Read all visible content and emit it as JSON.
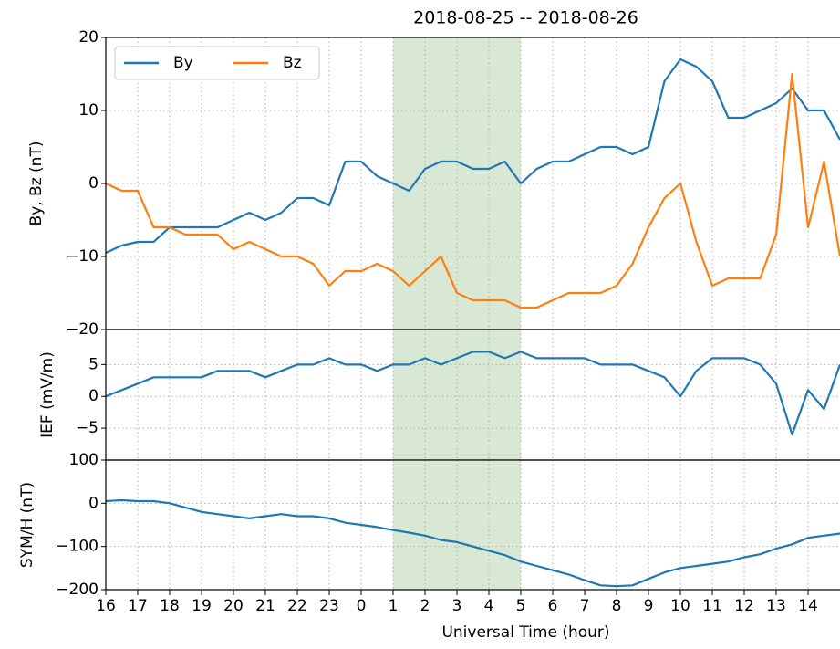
{
  "chart_data": [
    {
      "type": "line",
      "title": "2018-08-25 -- 2018-08-26",
      "ylabel": "By, Bz (nT)",
      "x": [
        0,
        0.5,
        1,
        1.5,
        2,
        2.5,
        3,
        3.5,
        4,
        4.5,
        5,
        5.5,
        6,
        6.5,
        7,
        7.5,
        8,
        8.5,
        9,
        9.5,
        10,
        10.5,
        11,
        11.5,
        12,
        12.5,
        13,
        13.5,
        14,
        14.5,
        15,
        15.5,
        16,
        16.5,
        17,
        17.5,
        18,
        18.5,
        19,
        19.5,
        20,
        20.5,
        21,
        21.5,
        22,
        22.5,
        23
      ],
      "series": [
        {
          "name": "By",
          "color": "#1f77b4",
          "values": [
            -9.5,
            -8.5,
            -8,
            -8,
            -6,
            -6,
            -6,
            -6,
            -5,
            -4,
            -5,
            -4,
            -2,
            -2,
            -3,
            3,
            3,
            1,
            0,
            -1,
            2,
            3,
            3,
            2,
            2,
            3,
            0,
            2,
            3,
            3,
            4,
            5,
            5,
            4,
            5,
            14,
            17,
            16,
            14,
            9,
            9,
            10,
            11,
            13,
            10,
            10,
            6
          ]
        },
        {
          "name": "Bz",
          "color": "#ff7f0e",
          "values": [
            0,
            -1,
            -1,
            -6,
            -6,
            -7,
            -7,
            -7,
            -9,
            -8,
            -9,
            -10,
            -10,
            -11,
            -14,
            -12,
            -12,
            -11,
            -12,
            -14,
            -12,
            -10,
            -15,
            -16,
            -16,
            -16,
            -17,
            -17,
            -16,
            -15,
            -15,
            -15,
            -14,
            -11,
            -6,
            -2,
            0,
            -8,
            -14,
            -13,
            -13,
            -13,
            -7,
            15,
            -6,
            3,
            -10
          ]
        }
      ],
      "xlim": [
        0,
        23
      ],
      "ylim": [
        -20,
        20
      ],
      "yticks": [
        {
          "value": -20,
          "label": "−20"
        },
        {
          "value": -10,
          "label": "−10"
        },
        0,
        10,
        20
      ],
      "grid": true,
      "legend": "upper left",
      "highlight": [
        9,
        13
      ],
      "highlight_color": "#d9e8d4"
    },
    {
      "type": "line",
      "ylabel": "IEF (mV/m)",
      "x": [
        0,
        0.5,
        1,
        1.5,
        2,
        2.5,
        3,
        3.5,
        4,
        4.5,
        5,
        5.5,
        6,
        6.5,
        7,
        7.5,
        8,
        8.5,
        9,
        9.5,
        10,
        10.5,
        11,
        11.5,
        12,
        12.5,
        13,
        13.5,
        14,
        14.5,
        15,
        15.5,
        16,
        16.5,
        17,
        17.5,
        18,
        18.5,
        19,
        19.5,
        20,
        20.5,
        21,
        21.5,
        22,
        22.5,
        23
      ],
      "series": [
        {
          "color": "#1f77b4",
          "values": [
            0,
            1,
            2,
            3,
            3,
            3,
            3,
            4,
            4,
            4,
            3,
            4,
            5,
            5,
            6,
            5,
            5,
            4,
            5,
            5,
            6,
            5,
            6,
            7,
            7,
            6,
            7,
            6,
            6,
            6,
            6,
            5,
            5,
            5,
            4,
            3,
            0,
            4,
            6,
            6,
            6,
            5,
            2,
            -6,
            1,
            -2,
            5
          ]
        }
      ],
      "xlim": [
        0,
        23
      ],
      "ylim": [
        -10,
        10.5
      ],
      "yticks": [
        {
          "value": -5,
          "label": "−5"
        },
        0,
        5
      ],
      "grid": true,
      "highlight": [
        9,
        13
      ],
      "highlight_color": "#d9e8d4"
    },
    {
      "type": "line",
      "ylabel": "SYM/H (nT)",
      "xlabel": "Universal Time (hour)",
      "x": [
        0,
        0.5,
        1,
        1.5,
        2,
        2.5,
        3,
        3.5,
        4,
        4.5,
        5,
        5.5,
        6,
        6.5,
        7,
        7.5,
        8,
        8.5,
        9,
        9.5,
        10,
        10.5,
        11,
        11.5,
        12,
        12.5,
        13,
        13.5,
        14,
        14.5,
        15,
        15.5,
        16,
        16.5,
        17,
        17.5,
        18,
        18.5,
        19,
        19.5,
        20,
        20.5,
        21,
        21.5,
        22,
        22.5,
        23
      ],
      "series": [
        {
          "color": "#1f77b4",
          "values": [
            5,
            7,
            5,
            5,
            0,
            -10,
            -20,
            -25,
            -30,
            -35,
            -30,
            -25,
            -30,
            -30,
            -35,
            -45,
            -50,
            -55,
            -62,
            -68,
            -75,
            -85,
            -90,
            -100,
            -110,
            -120,
            -135,
            -145,
            -155,
            -165,
            -178,
            -190,
            -192,
            -190,
            -175,
            -160,
            -150,
            -145,
            -140,
            -135,
            -125,
            -118,
            -105,
            -95,
            -80,
            -75,
            -70
          ]
        }
      ],
      "xlim": [
        0,
        23
      ],
      "ylim": [
        -200,
        100
      ],
      "yticks": [
        {
          "value": -200,
          "label": "−200"
        },
        {
          "value": -100,
          "label": "−100"
        },
        0,
        100
      ],
      "xticks": [
        {
          "value": 0,
          "label": "16"
        },
        {
          "value": 1,
          "label": "17"
        },
        {
          "value": 2,
          "label": "18"
        },
        {
          "value": 3,
          "label": "19"
        },
        {
          "value": 4,
          "label": "20"
        },
        {
          "value": 5,
          "label": "21"
        },
        {
          "value": 6,
          "label": "22"
        },
        {
          "value": 7,
          "label": "23"
        },
        {
          "value": 8,
          "label": "0"
        },
        {
          "value": 9,
          "label": "1"
        },
        {
          "value": 10,
          "label": "2"
        },
        {
          "value": 11,
          "label": "3"
        },
        {
          "value": 12,
          "label": "4"
        },
        {
          "value": 13,
          "label": "5"
        },
        {
          "value": 14,
          "label": "6"
        },
        {
          "value": 15,
          "label": "7"
        },
        {
          "value": 16,
          "label": "8"
        },
        {
          "value": 17,
          "label": "9"
        },
        {
          "value": 18,
          "label": "10"
        },
        {
          "value": 19,
          "label": "11"
        },
        {
          "value": 20,
          "label": "12"
        },
        {
          "value": 21,
          "label": "13"
        },
        {
          "value": 22,
          "label": "14"
        }
      ],
      "grid": true,
      "highlight": [
        9,
        13
      ],
      "highlight_color": "#d9e8d4"
    }
  ]
}
